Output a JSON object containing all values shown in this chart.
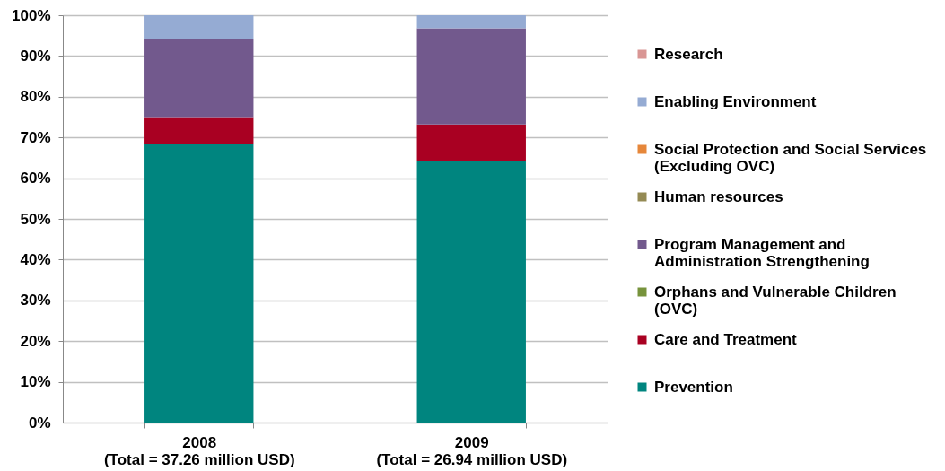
{
  "chart_data": {
    "type": "bar",
    "stacked": true,
    "categories": [
      "2008 (Total = 37.26 million USD)",
      "2009 (Total = 26.94 million USD)"
    ],
    "series": [
      {
        "name": "Prevention",
        "color": "#00857f",
        "values": [
          68.4,
          64.2
        ]
      },
      {
        "name": "Care and Treatment",
        "color": "#a90022",
        "values": [
          6.6,
          9.0
        ]
      },
      {
        "name": "Orphans and Vulnerable Children (OVC)",
        "color": "#77933c",
        "values": [
          null,
          null
        ]
      },
      {
        "name": "Program Management and Administration Strengthening",
        "color": "#72598d",
        "values": [
          19.3,
          23.6
        ]
      },
      {
        "name": "Human resources",
        "color": "#948a54",
        "values": [
          null,
          null
        ]
      },
      {
        "name": "Social Protection and Social Services (Excluding OVC)",
        "color": "#e6873a",
        "values": [
          null,
          null
        ]
      },
      {
        "name": "Enabling Environment",
        "color": "#95abd3",
        "values": [
          5.7,
          3.2
        ]
      },
      {
        "name": "Research",
        "color": "#d99694",
        "values": [
          null,
          null
        ]
      }
    ],
    "ylim": [
      0,
      100
    ],
    "yticks": [
      {
        "value": 0,
        "label": "0%"
      },
      {
        "value": 10,
        "label": "10%"
      },
      {
        "value": 20,
        "label": "20%"
      },
      {
        "value": 30,
        "label": "30%"
      },
      {
        "value": 40,
        "label": "40%"
      },
      {
        "value": 50,
        "label": "50%"
      },
      {
        "value": 60,
        "label": "60%"
      },
      {
        "value": 70,
        "label": "70%"
      },
      {
        "value": 80,
        "label": "80%"
      },
      {
        "value": 90,
        "label": "90%"
      },
      {
        "value": 100,
        "label": "100%"
      }
    ],
    "grid": "y",
    "legend": "right"
  }
}
